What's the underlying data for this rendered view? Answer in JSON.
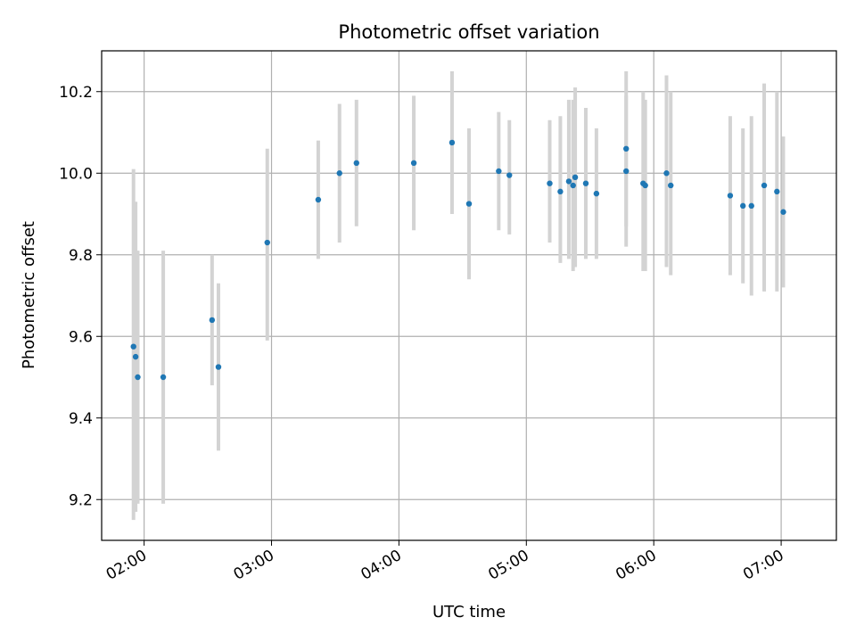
{
  "chart_data": {
    "type": "scatter",
    "title": "Photometric offset variation",
    "xlabel": "UTC time",
    "ylabel": "Photometric offset",
    "xlim": [
      "01:40",
      "07:26"
    ],
    "ylim": [
      9.1,
      10.3
    ],
    "x_ticks": [
      "02:00",
      "03:00",
      "04:00",
      "05:00",
      "06:00",
      "07:00"
    ],
    "y_ticks": [
      "9.2",
      "9.4",
      "9.6",
      "9.8",
      "10.0",
      "10.2"
    ],
    "grid": true,
    "colors": {
      "point": "#1f77b4",
      "errorbar": "#d3d3d3",
      "grid": "#b0b0b0"
    },
    "points": [
      {
        "x": "01:55",
        "y": 9.575,
        "lo": 9.15,
        "hi": 10.01
      },
      {
        "x": "01:56",
        "y": 9.55,
        "lo": 9.17,
        "hi": 9.93
      },
      {
        "x": "01:57",
        "y": 9.5,
        "lo": 9.19,
        "hi": 9.81
      },
      {
        "x": "02:09",
        "y": 9.5,
        "lo": 9.19,
        "hi": 9.81
      },
      {
        "x": "02:32",
        "y": 9.64,
        "lo": 9.48,
        "hi": 9.8
      },
      {
        "x": "02:35",
        "y": 9.525,
        "lo": 9.32,
        "hi": 9.73
      },
      {
        "x": "02:58",
        "y": 9.83,
        "lo": 9.59,
        "hi": 10.06
      },
      {
        "x": "03:22",
        "y": 9.935,
        "lo": 9.79,
        "hi": 10.08
      },
      {
        "x": "03:32",
        "y": 10.0,
        "lo": 9.83,
        "hi": 10.17
      },
      {
        "x": "03:40",
        "y": 10.025,
        "lo": 9.87,
        "hi": 10.18
      },
      {
        "x": "04:07",
        "y": 10.025,
        "lo": 9.86,
        "hi": 10.19
      },
      {
        "x": "04:25",
        "y": 10.075,
        "lo": 9.9,
        "hi": 10.25
      },
      {
        "x": "04:33",
        "y": 9.925,
        "lo": 9.74,
        "hi": 10.11
      },
      {
        "x": "04:47",
        "y": 10.005,
        "lo": 9.86,
        "hi": 10.15
      },
      {
        "x": "04:52",
        "y": 9.995,
        "lo": 9.85,
        "hi": 10.13
      },
      {
        "x": "05:11",
        "y": 9.975,
        "lo": 9.83,
        "hi": 10.13
      },
      {
        "x": "05:16",
        "y": 9.955,
        "lo": 9.78,
        "hi": 10.14
      },
      {
        "x": "05:20",
        "y": 9.98,
        "lo": 9.79,
        "hi": 10.18
      },
      {
        "x": "05:22",
        "y": 9.97,
        "lo": 9.76,
        "hi": 10.18
      },
      {
        "x": "05:23",
        "y": 9.99,
        "lo": 9.77,
        "hi": 10.21
      },
      {
        "x": "05:28",
        "y": 9.975,
        "lo": 9.79,
        "hi": 10.16
      },
      {
        "x": "05:33",
        "y": 9.95,
        "lo": 9.79,
        "hi": 10.11
      },
      {
        "x": "05:47",
        "y": 10.06,
        "lo": 9.87,
        "hi": 10.25
      },
      {
        "x": "05:47",
        "y": 10.005,
        "lo": 9.82,
        "hi": 10.19
      },
      {
        "x": "05:55",
        "y": 9.975,
        "lo": 9.76,
        "hi": 10.2
      },
      {
        "x": "05:56",
        "y": 9.97,
        "lo": 9.76,
        "hi": 10.18
      },
      {
        "x": "06:06",
        "y": 10.0,
        "lo": 9.77,
        "hi": 10.24
      },
      {
        "x": "06:08",
        "y": 9.97,
        "lo": 9.75,
        "hi": 10.2
      },
      {
        "x": "06:36",
        "y": 9.945,
        "lo": 9.75,
        "hi": 10.14
      },
      {
        "x": "06:42",
        "y": 9.92,
        "lo": 9.73,
        "hi": 10.11
      },
      {
        "x": "06:46",
        "y": 9.92,
        "lo": 9.7,
        "hi": 10.14
      },
      {
        "x": "06:52",
        "y": 9.97,
        "lo": 9.71,
        "hi": 10.22
      },
      {
        "x": "06:58",
        "y": 9.955,
        "lo": 9.71,
        "hi": 10.2
      },
      {
        "x": "07:01",
        "y": 9.905,
        "lo": 9.72,
        "hi": 10.09
      }
    ]
  }
}
